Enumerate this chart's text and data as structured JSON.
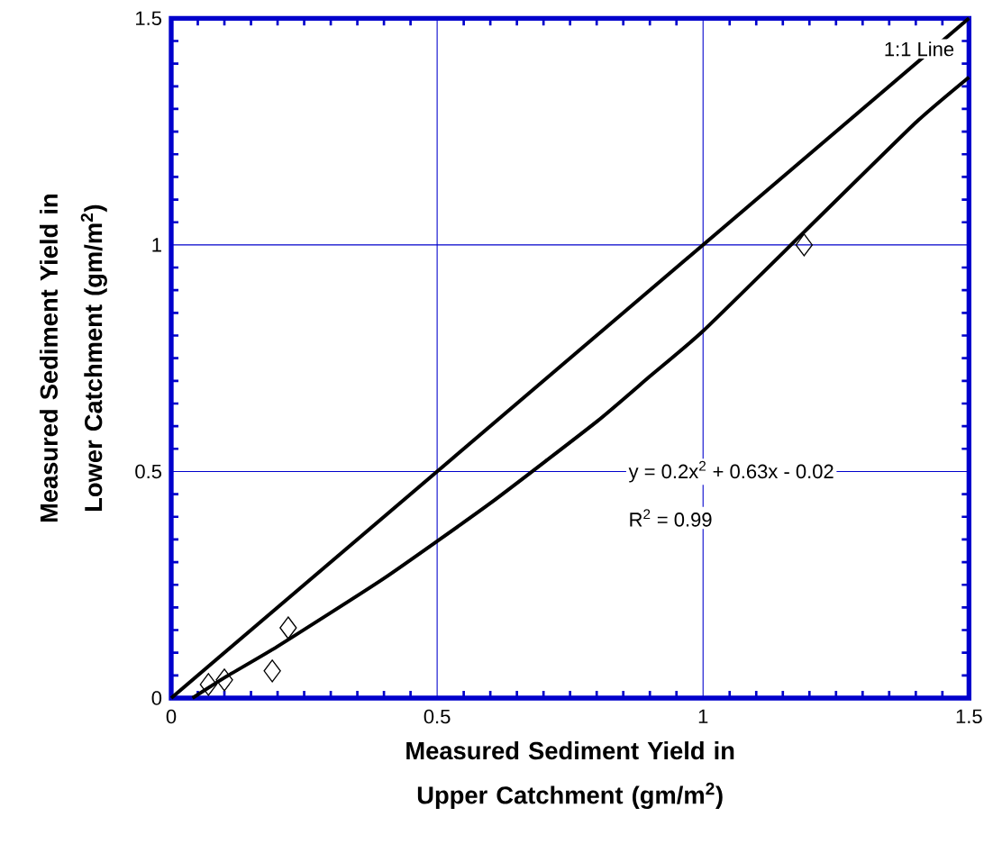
{
  "chart_data": {
    "type": "scatter",
    "xlabel": "Measured Sediment Yield in Upper Catchment (gm/m$^{2}$)",
    "ylabel": "Measured Sediment Yield in Lower Catchment (gm/m$^{2}$)",
    "xlim": [
      0,
      1.5
    ],
    "ylim": [
      0,
      1.5
    ],
    "xticks": [
      0,
      0.5,
      1,
      1.5
    ],
    "yticks": [
      0,
      0.5,
      1,
      1.5
    ],
    "grid": true,
    "series": [
      {
        "type": "line",
        "color": "#000000",
        "x": [
          0,
          1.5
        ],
        "values": [
          0,
          1.5
        ]
      },
      {
        "type": "line",
        "color": "#000000",
        "x": [
          0.04,
          0.1,
          0.2,
          0.4,
          0.6,
          0.8,
          0.9,
          1.0,
          1.2,
          1.4,
          1.5
        ],
        "values": [
          0.0,
          0.045,
          0.114,
          0.264,
          0.43,
          0.61,
          0.71,
          0.81,
          1.04,
          1.27,
          1.37
        ]
      },
      {
        "marker": "diamond",
        "color": "#000000",
        "x": [
          0.07,
          0.1,
          0.19,
          0.22,
          1.19
        ],
        "values": [
          0.03,
          0.04,
          0.06,
          0.155,
          1.0
        ]
      }
    ],
    "annotations": [
      "1:1 Line",
      "y = 0.2x$^{2}$ + 0.63x - 0.02",
      "R$^{2}$ = 0.99"
    ]
  }
}
